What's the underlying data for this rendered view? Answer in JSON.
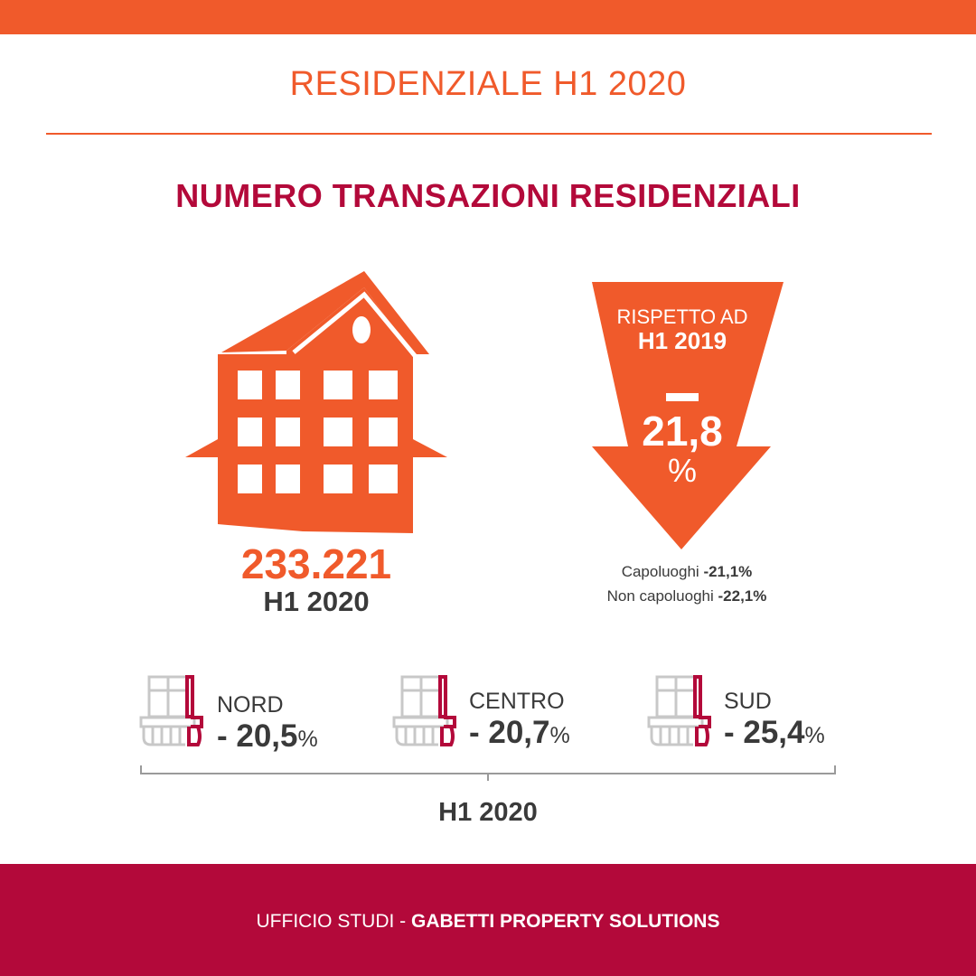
{
  "header": {
    "title": "RESIDENZIALE H1 2020"
  },
  "section": {
    "heading": "NUMERO TRANSAZIONI RESIDENZIALI"
  },
  "total": {
    "value": "233.221",
    "period": "H1 2020"
  },
  "comparison": {
    "label": "RISPETTO AD",
    "period": "H1 2019",
    "change_value": "21,8",
    "change_unit": "%",
    "breakdown": [
      {
        "label": "Capoluoghi",
        "value": "-21,1%"
      },
      {
        "label": "Non capoluoghi",
        "value": "-22,1%"
      }
    ]
  },
  "regions": [
    {
      "name": "NORD",
      "value": "- 20,5",
      "unit": "%"
    },
    {
      "name": "CENTRO",
      "value": "- 20,7",
      "unit": "%"
    },
    {
      "name": "SUD",
      "value": "- 25,4",
      "unit": "%"
    }
  ],
  "regions_period": "H1 2020",
  "footer": {
    "prefix": "UFFICIO STUDI - ",
    "brand": "GABETTI PROPERTY SOLUTIONS"
  },
  "icons": {
    "house": "house-icon",
    "arrow": "down-arrow-icon",
    "balcony": "balcony-icon"
  },
  "colors": {
    "orange": "#f05a2b",
    "crimson": "#b3093a",
    "text": "#3a3a3a"
  }
}
